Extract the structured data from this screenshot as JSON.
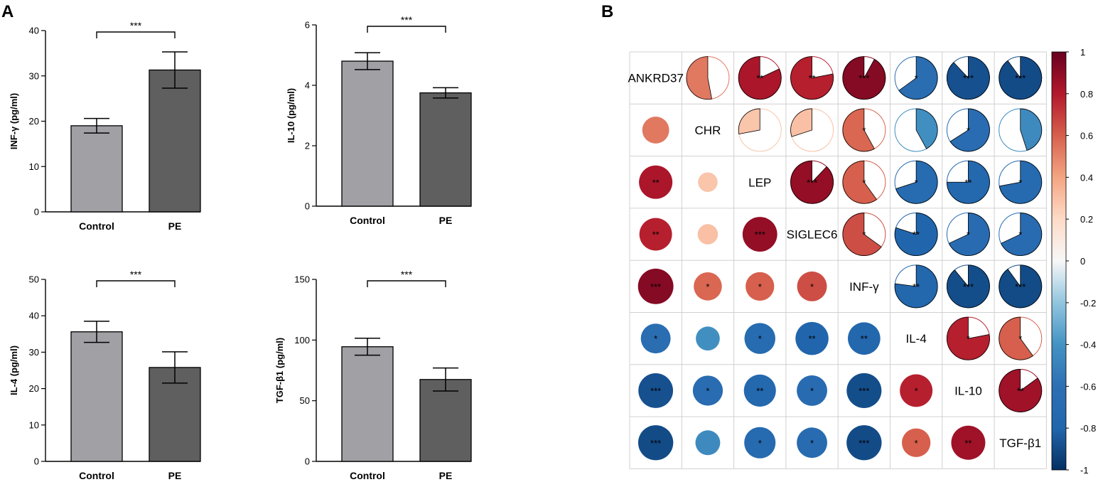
{
  "panel_labels": {
    "a": "A",
    "b": "B"
  },
  "colors": {
    "control": "#a1a0a5",
    "pe": "#5f5f5f",
    "neg": "#053061",
    "neutral": "#f7f7f7",
    "pos": "#67001f"
  },
  "chart_data": [
    {
      "type": "bar",
      "id": "ifng",
      "ylabel": "INF-γ (pg/ml)",
      "categories": [
        "Control",
        "PE"
      ],
      "values": [
        19,
        31.3
      ],
      "errors": [
        1.6,
        4
      ],
      "ylim": [
        0,
        40
      ],
      "yticks": [
        "0",
        "10",
        "20",
        "30",
        "40"
      ],
      "yvals": [
        0,
        10,
        20,
        30,
        40
      ],
      "significance": "***"
    },
    {
      "type": "bar",
      "id": "il10",
      "ylabel": "IL-10 (pg/ml)",
      "categories": [
        "Control",
        "PE"
      ],
      "values": [
        4.8,
        3.75
      ],
      "errors": [
        0.28,
        0.17
      ],
      "ylim": [
        0,
        6
      ],
      "yticks": [
        "0",
        "2",
        "4",
        "6"
      ],
      "yvals": [
        0,
        2,
        4,
        6
      ],
      "significance": "***"
    },
    {
      "type": "bar",
      "id": "il4",
      "ylabel": "IL-4 (pg/ml)",
      "categories": [
        "Control",
        "PE"
      ],
      "values": [
        35.6,
        25.8
      ],
      "errors": [
        2.9,
        4.3
      ],
      "ylim": [
        0,
        50
      ],
      "yticks": [
        "0",
        "10",
        "20",
        "30",
        "40",
        "50"
      ],
      "yvals": [
        0,
        10,
        20,
        30,
        40,
        50
      ],
      "significance": "***"
    },
    {
      "type": "bar",
      "id": "tgfb1",
      "ylabel": "TGF-β1 (pg/ml)",
      "categories": [
        "Control",
        "PE"
      ],
      "values": [
        94.5,
        67.5
      ],
      "errors": [
        7,
        9.5
      ],
      "ylim": [
        0,
        150
      ],
      "yticks": [
        "0",
        "50",
        "100",
        "150"
      ],
      "yvals": [
        0,
        50,
        100,
        150
      ],
      "significance": "***"
    },
    {
      "type": "heatmap",
      "id": "correlation",
      "title": "",
      "variables": [
        "ANKRD37",
        "CHR",
        "LEP",
        "SIGLEC6",
        "INF-γ",
        "IL-4",
        "IL-10",
        "TGF-β1"
      ],
      "matrix": [
        [
          1,
          0.53,
          0.82,
          0.78,
          0.92,
          -0.65,
          -0.88,
          -0.9
        ],
        [
          0.53,
          1,
          0.28,
          0.3,
          0.58,
          -0.42,
          -0.66,
          -0.45
        ],
        [
          0.82,
          0.28,
          1,
          0.88,
          0.6,
          -0.7,
          -0.75,
          -0.72
        ],
        [
          0.78,
          0.3,
          0.88,
          1,
          0.65,
          -0.8,
          -0.68,
          -0.68
        ],
        [
          0.92,
          0.58,
          0.6,
          0.65,
          1,
          -0.77,
          -0.89,
          -0.9
        ],
        [
          -0.65,
          -0.42,
          -0.7,
          -0.8,
          -0.77,
          1,
          0.78,
          0.6
        ],
        [
          -0.88,
          -0.66,
          -0.75,
          -0.68,
          -0.89,
          0.78,
          1,
          0.85
        ],
        [
          -0.9,
          -0.45,
          -0.72,
          -0.68,
          -0.9,
          0.6,
          0.85,
          1
        ]
      ],
      "stars": [
        [
          "",
          "",
          "**",
          "**",
          "***",
          "*",
          "***",
          "***"
        ],
        [
          "",
          "",
          "",
          "",
          "*",
          "",
          "*",
          ""
        ],
        [
          "**",
          "",
          "",
          "***",
          "*",
          "*",
          "**",
          "*"
        ],
        [
          "**",
          "",
          "***",
          "",
          "*",
          "**",
          "*",
          "*"
        ],
        [
          "***",
          "*",
          "*",
          "*",
          "",
          "**",
          "***",
          "***"
        ],
        [
          "*",
          "",
          "*",
          "**",
          "**",
          "",
          "*",
          "*"
        ],
        [
          "***",
          "*",
          "**",
          "*",
          "***",
          "*",
          "",
          "**"
        ],
        [
          "***",
          "",
          "*",
          "*",
          "***",
          "*",
          "**",
          ""
        ]
      ],
      "colorbar": {
        "range": [
          -1,
          1
        ],
        "ticks": [
          "1",
          "0.8",
          "0.6",
          "0.4",
          "0.2",
          "0",
          "-0.2",
          "-0.4",
          "-0.6",
          "-0.8",
          "-1"
        ],
        "tick_values": [
          1,
          0.8,
          0.6,
          0.4,
          0.2,
          0,
          -0.2,
          -0.4,
          -0.6,
          -0.8,
          -1
        ]
      }
    }
  ]
}
